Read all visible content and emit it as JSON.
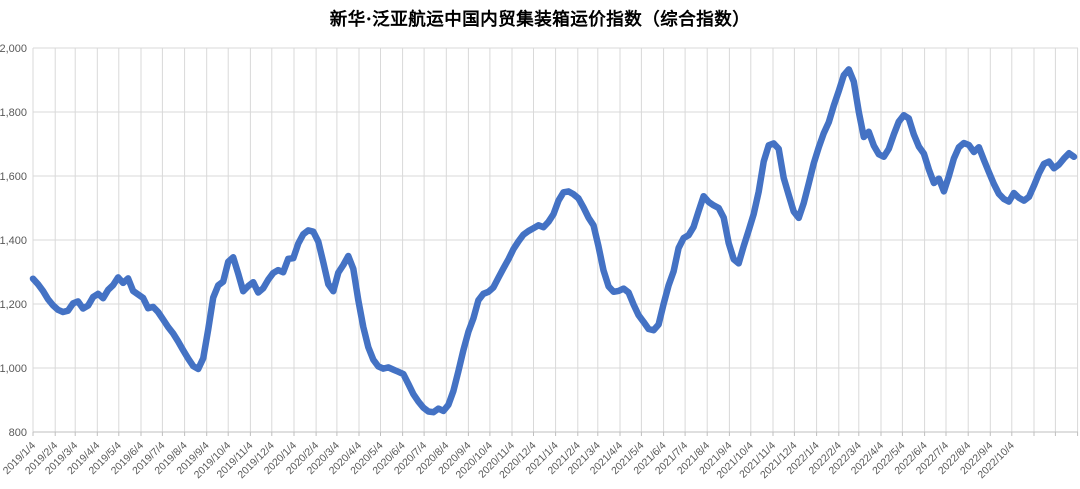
{
  "title": "新华·泛亚航运中国内贸集装箱运价指数（综合指数）",
  "colors": {
    "line": "#4472C4",
    "gridline": "#D9D9D9",
    "axis_line": "#BFBFBF",
    "axis_label": "#595959",
    "title_text": "#000000",
    "background": "#FFFFFF"
  },
  "y_axis": {
    "tick_labels": [
      "800",
      "1,000",
      "1,200",
      "1,400",
      "1,600",
      "1,800",
      "2,000"
    ]
  },
  "chart_data": {
    "type": "line",
    "title": "新华·泛亚航运中国内贸集装箱运价指数（综合指数）",
    "xlabel": "",
    "ylabel": "",
    "ylim": [
      800,
      2000
    ],
    "y_ticks": [
      800,
      1000,
      1200,
      1400,
      1600,
      1800,
      2000
    ],
    "grid": true,
    "legend": "none",
    "x_tick_labels": [
      "2019/1/4",
      "2019/2/4",
      "2019/3/4",
      "2019/4/4",
      "2019/5/4",
      "2019/6/4",
      "2019/7/4",
      "2019/8/4",
      "2019/9/4",
      "2019/10/4",
      "2019/11/4",
      "2019/12/4",
      "2020/1/4",
      "2020/2/4",
      "2020/3/4",
      "2020/4/4",
      "2020/5/4",
      "2020/6/4",
      "2020/7/4",
      "2020/8/4",
      "2020/9/4",
      "2020/10/4",
      "2020/11/4",
      "2020/12/4",
      "2021/1/4",
      "2021/2/4",
      "2021/3/4",
      "2021/4/4",
      "2021/5/4",
      "2021/6/4",
      "2021/7/4",
      "2021/8/4",
      "2021/9/4",
      "2021/10/4",
      "2021/11/4",
      "2021/12/4",
      "2022/1/4",
      "2022/2/4",
      "2022/3/4",
      "2022/4/4",
      "2022/5/4",
      "2022/6/4",
      "2022/7/4",
      "2022/8/4",
      "2022/9/4",
      "2022/10/4"
    ],
    "extra_gridline_dates": [
      "2022/11/4",
      "2022/12/4",
      "2023/1/4"
    ],
    "series": [
      {
        "name": "综合指数",
        "color": "#4472C4",
        "dates": [
          "2019/1/4",
          "2019/1/11",
          "2019/1/18",
          "2019/1/25",
          "2019/2/1",
          "2019/2/8",
          "2019/2/15",
          "2019/2/22",
          "2019/3/1",
          "2019/3/8",
          "2019/3/15",
          "2019/3/22",
          "2019/3/29",
          "2019/4/5",
          "2019/4/12",
          "2019/4/19",
          "2019/4/26",
          "2019/5/3",
          "2019/5/10",
          "2019/5/17",
          "2019/5/24",
          "2019/5/31",
          "2019/6/7",
          "2019/6/14",
          "2019/6/21",
          "2019/6/28",
          "2019/7/5",
          "2019/7/12",
          "2019/7/19",
          "2019/7/26",
          "2019/8/2",
          "2019/8/9",
          "2019/8/16",
          "2019/8/23",
          "2019/8/30",
          "2019/9/6",
          "2019/9/13",
          "2019/9/20",
          "2019/9/27",
          "2019/10/4",
          "2019/10/11",
          "2019/10/18",
          "2019/10/25",
          "2019/11/1",
          "2019/11/8",
          "2019/11/15",
          "2019/11/22",
          "2019/11/29",
          "2019/12/6",
          "2019/12/13",
          "2019/12/20",
          "2019/12/27",
          "2020/1/3",
          "2020/1/10",
          "2020/1/17",
          "2020/1/24",
          "2020/1/31",
          "2020/2/7",
          "2020/2/14",
          "2020/2/21",
          "2020/2/28",
          "2020/3/6",
          "2020/3/13",
          "2020/3/20",
          "2020/3/27",
          "2020/4/3",
          "2020/4/10",
          "2020/4/17",
          "2020/4/24",
          "2020/5/1",
          "2020/5/8",
          "2020/5/15",
          "2020/5/22",
          "2020/5/29",
          "2020/6/5",
          "2020/6/12",
          "2020/6/19",
          "2020/6/26",
          "2020/7/3",
          "2020/7/10",
          "2020/7/17",
          "2020/7/24",
          "2020/7/31",
          "2020/8/7",
          "2020/8/14",
          "2020/8/21",
          "2020/8/28",
          "2020/9/4",
          "2020/9/11",
          "2020/9/18",
          "2020/9/25",
          "2020/10/2",
          "2020/10/9",
          "2020/10/16",
          "2020/10/23",
          "2020/10/30",
          "2020/11/6",
          "2020/11/13",
          "2020/11/20",
          "2020/11/27",
          "2020/12/4",
          "2020/12/11",
          "2020/12/18",
          "2020/12/25",
          "2021/1/1",
          "2021/1/8",
          "2021/1/15",
          "2021/1/22",
          "2021/1/29",
          "2021/2/5",
          "2021/2/12",
          "2021/2/19",
          "2021/2/26",
          "2021/3/5",
          "2021/3/12",
          "2021/3/19",
          "2021/3/26",
          "2021/4/2",
          "2021/4/9",
          "2021/4/16",
          "2021/4/23",
          "2021/4/30",
          "2021/5/7",
          "2021/5/14",
          "2021/5/21",
          "2021/5/28",
          "2021/6/4",
          "2021/6/11",
          "2021/6/18",
          "2021/6/25",
          "2021/7/2",
          "2021/7/9",
          "2021/7/16",
          "2021/7/23",
          "2021/7/30",
          "2021/8/6",
          "2021/8/13",
          "2021/8/20",
          "2021/8/27",
          "2021/9/3",
          "2021/9/10",
          "2021/9/17",
          "2021/9/24",
          "2021/10/1",
          "2021/10/8",
          "2021/10/15",
          "2021/10/22",
          "2021/10/29",
          "2021/11/5",
          "2021/11/12",
          "2021/11/19",
          "2021/11/26",
          "2021/12/3",
          "2021/12/10",
          "2021/12/17",
          "2021/12/24",
          "2021/12/31",
          "2022/1/7",
          "2022/1/14",
          "2022/1/21",
          "2022/1/28",
          "2022/2/4",
          "2022/2/11",
          "2022/2/18",
          "2022/2/25",
          "2022/3/4",
          "2022/3/11",
          "2022/3/18",
          "2022/3/25",
          "2022/4/1",
          "2022/4/8",
          "2022/4/15",
          "2022/4/22",
          "2022/4/29",
          "2022/5/6",
          "2022/5/13",
          "2022/5/20",
          "2022/5/27",
          "2022/6/3",
          "2022/6/10",
          "2022/6/17",
          "2022/6/24",
          "2022/7/1",
          "2022/7/8",
          "2022/7/15",
          "2022/7/22",
          "2022/7/29",
          "2022/8/5",
          "2022/8/12",
          "2022/8/19",
          "2022/8/26",
          "2022/9/2",
          "2022/9/9",
          "2022/9/16",
          "2022/9/23",
          "2022/9/30",
          "2022/10/7",
          "2022/10/14",
          "2022/10/21",
          "2022/10/28",
          "2022/11/4",
          "2022/11/11",
          "2022/11/18",
          "2022/11/25",
          "2022/12/2",
          "2022/12/9",
          "2022/12/16",
          "2022/12/23",
          "2022/12/30"
        ],
        "values": [
          1279,
          1262,
          1241,
          1215,
          1196,
          1182,
          1175,
          1179,
          1202,
          1208,
          1186,
          1195,
          1222,
          1232,
          1218,
          1244,
          1259,
          1283,
          1266,
          1280,
          1241,
          1230,
          1219,
          1187,
          1191,
          1175,
          1152,
          1128,
          1108,
          1083,
          1056,
          1030,
          1006,
          997,
          1030,
          1120,
          1220,
          1258,
          1270,
          1332,
          1346,
          1295,
          1240,
          1256,
          1268,
          1236,
          1249,
          1276,
          1297,
          1306,
          1299,
          1341,
          1343,
          1389,
          1418,
          1430,
          1426,
          1395,
          1330,
          1262,
          1240,
          1298,
          1322,
          1350,
          1310,
          1212,
          1128,
          1065,
          1026,
          1005,
          998,
          1002,
          995,
          988,
          981,
          950,
          918,
          895,
          876,
          864,
          862,
          873,
          866,
          885,
          928,
          990,
          1056,
          1113,
          1155,
          1212,
          1232,
          1238,
          1252,
          1282,
          1312,
          1340,
          1372,
          1396,
          1417,
          1428,
          1437,
          1446,
          1440,
          1457,
          1481,
          1523,
          1549,
          1552,
          1543,
          1530,
          1502,
          1470,
          1446,
          1380,
          1305,
          1255,
          1238,
          1241,
          1248,
          1236,
          1198,
          1165,
          1144,
          1122,
          1118,
          1136,
          1200,
          1258,
          1302,
          1375,
          1406,
          1415,
          1441,
          1490,
          1537,
          1519,
          1508,
          1500,
          1470,
          1390,
          1340,
          1327,
          1381,
          1430,
          1481,
          1551,
          1645,
          1696,
          1702,
          1685,
          1594,
          1541,
          1489,
          1469,
          1515,
          1576,
          1640,
          1690,
          1734,
          1768,
          1820,
          1866,
          1915,
          1933,
          1895,
          1800,
          1722,
          1738,
          1695,
          1668,
          1660,
          1685,
          1730,
          1770,
          1790,
          1780,
          1730,
          1692,
          1670,
          1620,
          1578,
          1592,
          1552,
          1600,
          1655,
          1690,
          1703,
          1697,
          1675,
          1690,
          1650,
          1612,
          1575,
          1544,
          1528,
          1520,
          1547,
          1532,
          1523,
          1535,
          1570,
          1608,
          1638,
          1645,
          1624,
          1636,
          1655,
          1671,
          1660
        ]
      }
    ]
  }
}
